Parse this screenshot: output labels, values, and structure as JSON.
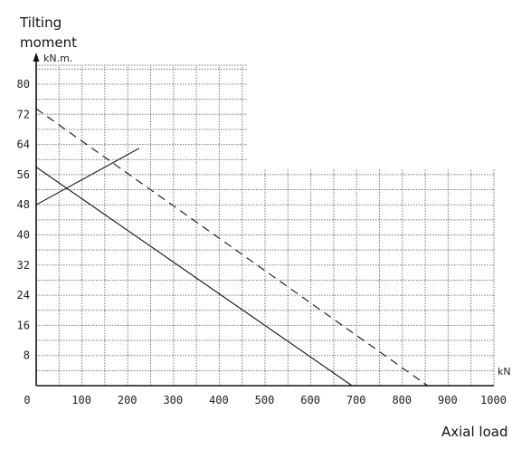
{
  "chart_data": {
    "type": "line",
    "ylabel_line1": "Tilting",
    "ylabel_line2": "moment",
    "yunit": "kN.m.",
    "xlabel": "Axial load",
    "xunit": "kN",
    "xlim": [
      0,
      1000
    ],
    "ylim": [
      0,
      84
    ],
    "x_ticks": [
      "0",
      "100",
      "200",
      "300",
      "400",
      "500",
      "600",
      "700",
      "800",
      "900",
      "1000"
    ],
    "y_ticks": [
      "8",
      "16",
      "24",
      "32",
      "40",
      "48",
      "56",
      "64",
      "72",
      "80"
    ],
    "grid": true,
    "series": [
      {
        "style": "solid",
        "x": [
          0,
          690
        ],
        "y": [
          58,
          0
        ]
      },
      {
        "style": "dashed",
        "x": [
          0,
          855
        ],
        "y": [
          73.5,
          0
        ]
      },
      {
        "style": "solid",
        "x": [
          0,
          225
        ],
        "y": [
          48,
          63
        ]
      }
    ]
  }
}
